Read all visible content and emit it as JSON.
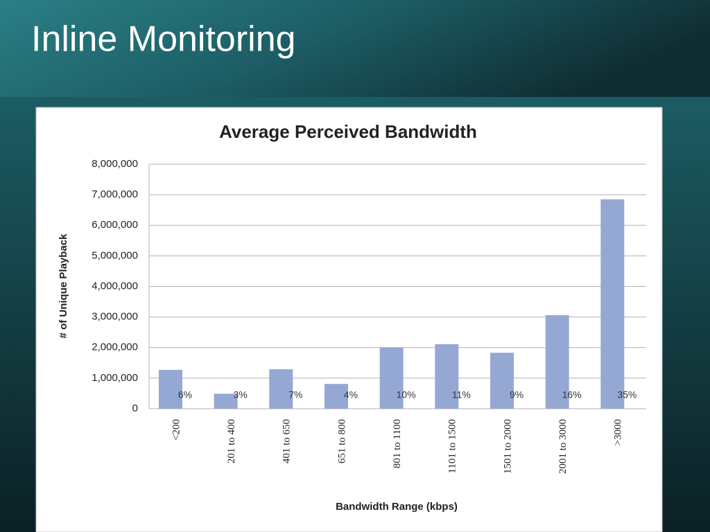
{
  "slide_title": "Inline Monitoring",
  "chart_data": {
    "type": "bar",
    "title": "Average Perceived Bandwidth",
    "x_label": "Bandwidth Range (kbps)",
    "y_label": "# of Unique Playback",
    "categories": [
      "<200",
      "201 to 400",
      "401 to 650",
      "651 to 800",
      "801 to 1100",
      "1101 to 1500",
      "1501 to 2000",
      "2001 to 3000",
      ">3000"
    ],
    "values": [
      1270000,
      490000,
      1290000,
      810000,
      2000000,
      2110000,
      1830000,
      3060000,
      6850000
    ],
    "share_labels": [
      "6%",
      "3%",
      "7%",
      "4%",
      "10%",
      "11%",
      "9%",
      "16%",
      "35%"
    ],
    "color": "#95a8d3",
    "ylim": [
      0,
      8000000
    ],
    "yticks": [
      0,
      {
        "value": 1000000,
        "label": "1,000,000"
      },
      {
        "value": 2000000,
        "label": "2,000,000"
      },
      {
        "value": 3000000,
        "label": "3,000,000"
      },
      {
        "value": 4000000,
        "label": "4,000,000"
      },
      {
        "value": 5000000,
        "label": "5,000,000"
      },
      {
        "value": 6000000,
        "label": "6,000,000"
      },
      {
        "value": 7000000,
        "label": "7,000,000"
      },
      {
        "value": 8000000,
        "label": "8,000,000"
      }
    ],
    "grid": true
  }
}
